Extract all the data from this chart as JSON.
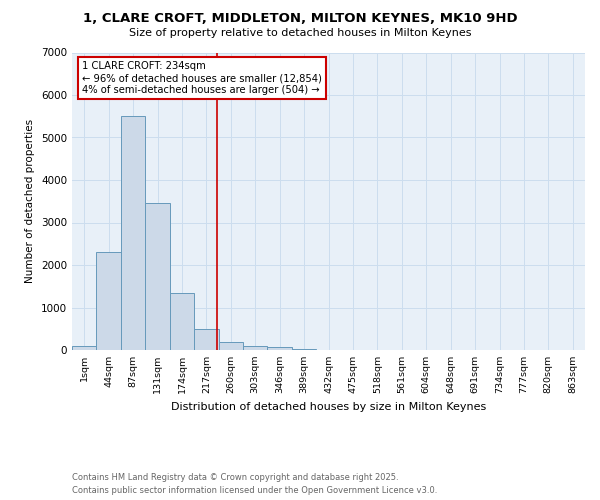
{
  "title_line1": "1, CLARE CROFT, MIDDLETON, MILTON KEYNES, MK10 9HD",
  "title_line2": "Size of property relative to detached houses in Milton Keynes",
  "xlabel": "Distribution of detached houses by size in Milton Keynes",
  "ylabel": "Number of detached properties",
  "categories": [
    "1sqm",
    "44sqm",
    "87sqm",
    "131sqm",
    "174sqm",
    "217sqm",
    "260sqm",
    "303sqm",
    "346sqm",
    "389sqm",
    "432sqm",
    "475sqm",
    "518sqm",
    "561sqm",
    "604sqm",
    "648sqm",
    "691sqm",
    "734sqm",
    "777sqm",
    "820sqm",
    "863sqm"
  ],
  "values": [
    100,
    2300,
    5500,
    3450,
    1330,
    490,
    190,
    100,
    60,
    30,
    10,
    5,
    2,
    1,
    0,
    0,
    0,
    0,
    0,
    0,
    0
  ],
  "bar_color": "#ccd9e8",
  "bar_edge_color": "#6699bb",
  "marker_label": "1 CLARE CROFT: 234sqm",
  "annotation_line1": "← 96% of detached houses are smaller (12,854)",
  "annotation_line2": "4% of semi-detached houses are larger (504) →",
  "annotation_box_color": "#ffffff",
  "annotation_box_edge": "#cc0000",
  "vline_color": "#cc0000",
  "vline_x": 5.43,
  "ylim": [
    0,
    7000
  ],
  "yticks": [
    0,
    1000,
    2000,
    3000,
    4000,
    5000,
    6000,
    7000
  ],
  "grid_color": "#ccddee",
  "background_color": "#e8f0f8",
  "footer_line1": "Contains HM Land Registry data © Crown copyright and database right 2025.",
  "footer_line2": "Contains public sector information licensed under the Open Government Licence v3.0."
}
